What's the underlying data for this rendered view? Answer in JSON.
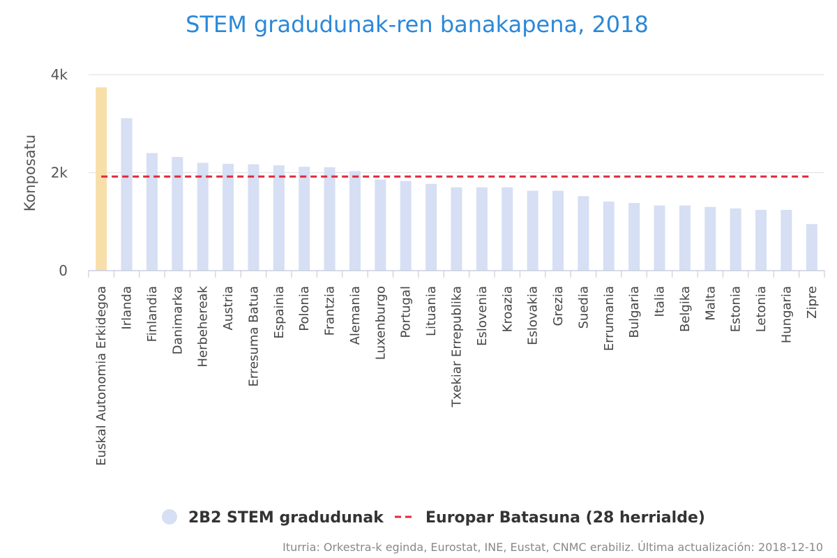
{
  "chart_data": {
    "type": "bar",
    "title": "STEM gradudunak-ren banakapena, 2018",
    "ylabel": "Konposatu",
    "xlabel": "",
    "ylim": [
      0,
      4000
    ],
    "yticks": [
      0,
      2000,
      4000
    ],
    "ytick_labels": [
      "0",
      "2k",
      "4k"
    ],
    "grid": true,
    "categories": [
      "Euskal Autonomia Erkidegoa",
      "Irlanda",
      "Finlandia",
      "Danimarka",
      "Herbehereak",
      "Austria",
      "Erresuma Batua",
      "Espainia",
      "Polonia",
      "Frantzia",
      "Alemania",
      "Luxenburgo",
      "Portugal",
      "Lituania",
      "Txekiar Errepublika",
      "Eslovenia",
      "Kroazia",
      "Eslovakia",
      "Grezia",
      "Suedia",
      "Errumania",
      "Bulgaria",
      "Italia",
      "Belgika",
      "Malta",
      "Estonia",
      "Letonia",
      "Hungaria",
      "Zipre"
    ],
    "series": [
      {
        "name": "2B2 STEM gradudunak",
        "type": "bar",
        "color": "#d6dff3",
        "highlight_color": "#f8dfaa",
        "highlight_index": 0,
        "values": [
          3740,
          3110,
          2400,
          2320,
          2200,
          2180,
          2170,
          2150,
          2120,
          2110,
          2030,
          1860,
          1830,
          1770,
          1700,
          1700,
          1700,
          1630,
          1630,
          1520,
          1410,
          1380,
          1330,
          1330,
          1300,
          1270,
          1240,
          1240,
          950
        ]
      },
      {
        "name": "Europar Batasuna (28 herrialde)",
        "type": "line",
        "style": "dashed",
        "color": "#e0283c",
        "value": 1920
      }
    ],
    "legend_position": "bottom-center",
    "source": "Iturria: Orkestra-k eginda, Eurostat, INE, Eustat, CNMC erabiliz. Última actualización: 2018-12-10"
  }
}
